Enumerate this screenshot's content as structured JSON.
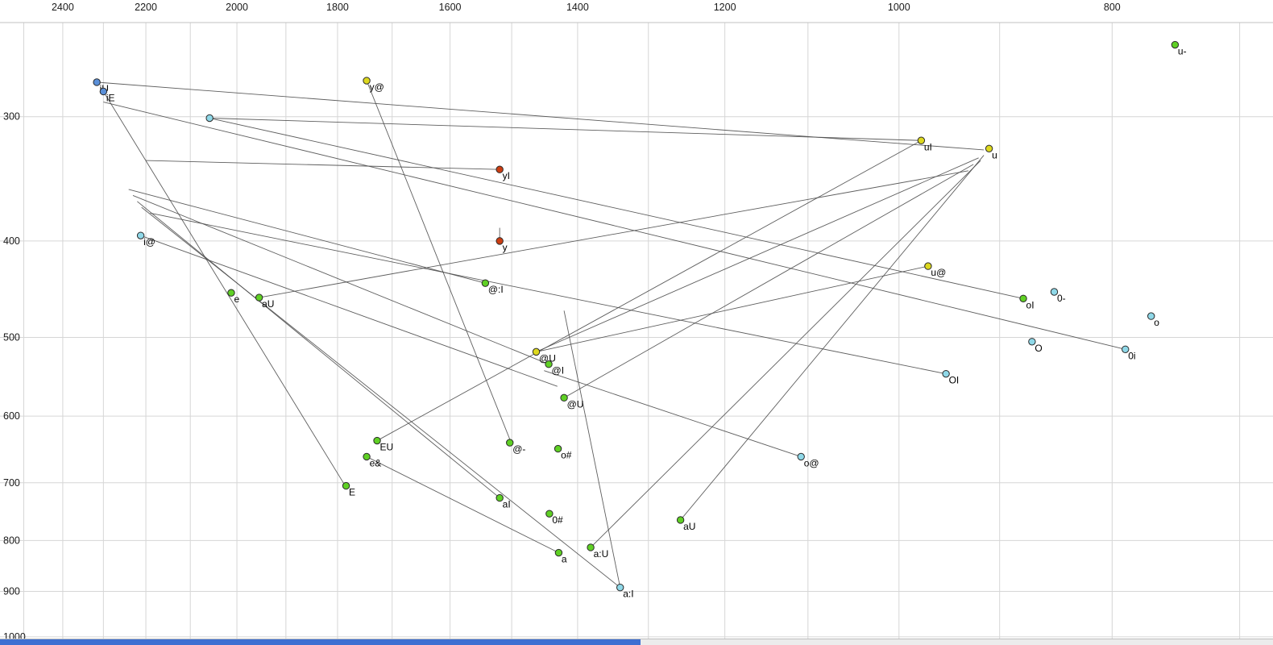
{
  "chart_data": {
    "type": "scatter",
    "title": "",
    "xlabel": "",
    "ylabel": "",
    "x_axis": {
      "scale": "log",
      "reversed": true,
      "left_hz": 2563,
      "right_hz": 676,
      "tick_values": [
        2400,
        2200,
        2000,
        1800,
        1600,
        1400,
        1200,
        1000,
        800
      ],
      "grid_values": [
        2500,
        2400,
        2300,
        2200,
        2100,
        2000,
        1900,
        1800,
        1700,
        1600,
        1500,
        1400,
        1300,
        1200,
        1100,
        1000,
        900,
        800,
        700
      ]
    },
    "y_axis": {
      "scale": "log",
      "increases_downward": true,
      "top_hz": 229,
      "bottom_hz": 1019,
      "tick_values": [
        300,
        400,
        500,
        600,
        700,
        800,
        900,
        1000
      ],
      "grid_values": [
        300,
        400,
        500,
        600,
        700,
        800,
        900,
        1000
      ]
    },
    "point_colors": {
      "green": "#5fd024",
      "yellow": "#ddd81e",
      "cyan": "#8fd8e8",
      "blue": "#5a8fd8",
      "red": "#cc3d12"
    },
    "style_colors": {
      "grid": "#d6d6d6",
      "plot_border": "#c2c2c2",
      "segment": "#4d4d4d",
      "tick_text": "#1a1a1a",
      "point_stroke": "#2a2a2a",
      "label_text": "#000000"
    },
    "points": [
      {
        "label": "u-",
        "f2": 749,
        "f1": 254,
        "color": "green"
      },
      {
        "label": "iU",
        "f2": 2316,
        "f1": 277,
        "color": "blue"
      },
      {
        "label": "iE",
        "f2": 2300,
        "f1": 283,
        "color": "blue"
      },
      {
        "label": "y@",
        "f2": 1746,
        "f1": 276,
        "color": "yellow"
      },
      {
        "label": "",
        "f2": 2058,
        "f1": 301,
        "color": "cyan"
      },
      {
        "label": "uI",
        "f2": 977,
        "f1": 317,
        "color": "yellow"
      },
      {
        "label": "u",
        "f2": 910,
        "f1": 323,
        "color": "yellow"
      },
      {
        "label": "yI",
        "f2": 1519,
        "f1": 339,
        "color": "red"
      },
      {
        "label": "i@",
        "f2": 2212,
        "f1": 395,
        "color": "cyan"
      },
      {
        "label": "y",
        "f2": 1519,
        "f1": 400,
        "color": "red"
      },
      {
        "label": "@:I",
        "f2": 1542,
        "f1": 441,
        "color": "green"
      },
      {
        "label": "u@",
        "f2": 970,
        "f1": 424,
        "color": "yellow"
      },
      {
        "label": "0-",
        "f2": 850,
        "f1": 450,
        "color": "cyan"
      },
      {
        "label": "oI",
        "f2": 878,
        "f1": 457,
        "color": "green"
      },
      {
        "label": "o",
        "f2": 768,
        "f1": 476,
        "color": "cyan"
      },
      {
        "label": "e",
        "f2": 2012,
        "f1": 451,
        "color": "green"
      },
      {
        "label": "aU",
        "f2": 1954,
        "f1": 456,
        "color": "green"
      },
      {
        "label": "O",
        "f2": 870,
        "f1": 505,
        "color": "cyan"
      },
      {
        "label": "0i",
        "f2": 789,
        "f1": 514,
        "color": "cyan"
      },
      {
        "label": "@U",
        "f2": 1462,
        "f1": 517,
        "color": "yellow"
      },
      {
        "label": "@I",
        "f2": 1443,
        "f1": 532,
        "color": "green"
      },
      {
        "label": "OI",
        "f2": 952,
        "f1": 544,
        "color": "cyan"
      },
      {
        "label": "@U",
        "f2": 1420,
        "f1": 575,
        "color": "green"
      },
      {
        "label": "EU",
        "f2": 1727,
        "f1": 635,
        "color": "green"
      },
      {
        "label": "e&",
        "f2": 1746,
        "f1": 659,
        "color": "green"
      },
      {
        "label": "E",
        "f2": 1784,
        "f1": 705,
        "color": "green"
      },
      {
        "label": "@-",
        "f2": 1503,
        "f1": 638,
        "color": "green"
      },
      {
        "label": "o#",
        "f2": 1429,
        "f1": 647,
        "color": "green"
      },
      {
        "label": "o@",
        "f2": 1108,
        "f1": 659,
        "color": "cyan"
      },
      {
        "label": "aI",
        "f2": 1519,
        "f1": 725,
        "color": "green"
      },
      {
        "label": "0#",
        "f2": 1442,
        "f1": 752,
        "color": "green"
      },
      {
        "label": "aU",
        "f2": 1257,
        "f1": 763,
        "color": "green"
      },
      {
        "label": "a",
        "f2": 1428,
        "f1": 823,
        "color": "green"
      },
      {
        "label": "a:U",
        "f2": 1381,
        "f1": 813,
        "color": "green"
      },
      {
        "label": "a:I",
        "f2": 1339,
        "f1": 892,
        "color": "cyan"
      }
    ],
    "segments": [
      [
        2316,
        277,
        915,
        324
      ],
      [
        2300,
        283,
        1787,
        703
      ],
      [
        2212,
        395,
        1430,
        560
      ],
      [
        1746,
        276,
        1500,
        640
      ],
      [
        1519,
        339,
        2200,
        332
      ],
      [
        977,
        317,
        2058,
        301
      ],
      [
        970,
        424,
        1462,
        517
      ],
      [
        1542,
        441,
        2240,
        355
      ],
      [
        1443,
        532,
        2230,
        360
      ],
      [
        1519,
        725,
        2220,
        365
      ],
      [
        1339,
        892,
        2210,
        370
      ],
      [
        952,
        544,
        2190,
        375
      ],
      [
        878,
        457,
        2058,
        301
      ],
      [
        789,
        514,
        2300,
        290
      ],
      [
        1462,
        517,
        920,
        330
      ],
      [
        1420,
        575,
        925,
        335
      ],
      [
        1727,
        635,
        977,
        317
      ],
      [
        1257,
        763,
        915,
        328
      ],
      [
        1381,
        813,
        918,
        332
      ],
      [
        1954,
        456,
        930,
        340
      ],
      [
        1108,
        659,
        1450,
        540
      ],
      [
        1746,
        659,
        1428,
        823
      ],
      [
        1420,
        470,
        1339,
        892
      ],
      [
        1519,
        400,
        1519,
        388
      ]
    ]
  },
  "scrollbar": {
    "thumb_start": 0,
    "thumb_end": 0.503
  }
}
